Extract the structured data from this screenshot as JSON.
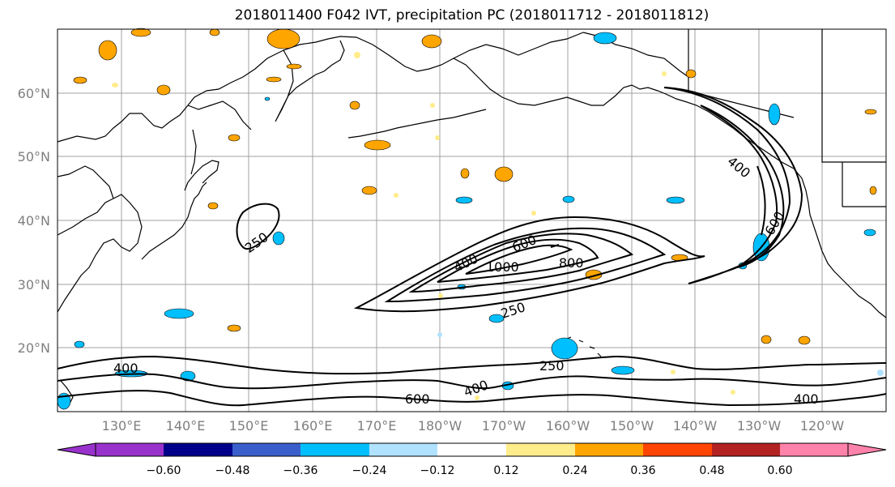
{
  "title": "2018011400 F042 IVT, precipitation PC (2018011712 - 2018011812)",
  "lat_labels": [
    "60°N",
    "50°N",
    "40°N",
    "30°N",
    "20°N"
  ],
  "lon_labels": [
    "130°E",
    "140°E",
    "150°E",
    "160°E",
    "170°E",
    "180°W",
    "170°W",
    "160°W",
    "150°W",
    "140°W",
    "130°W",
    "120°W"
  ],
  "contour_labels": [
    "250",
    "400",
    "600",
    "1000",
    "800",
    "250",
    "400",
    "600",
    "400",
    "250",
    "400",
    "600",
    "400"
  ],
  "colorbar": {
    "ticks": [
      "−0.60",
      "−0.48",
      "−0.36",
      "−0.24",
      "−0.12",
      "0.12",
      "0.24",
      "0.36",
      "0.48",
      "0.60"
    ],
    "colors": [
      "#9932cc",
      "#00008b",
      "#3a5fcd",
      "#00bfff",
      "#b0e2ff",
      "#ffffff",
      "#ffec8b",
      "#ffa500",
      "#ff4500",
      "#b22222",
      "#ff82ab"
    ]
  }
}
